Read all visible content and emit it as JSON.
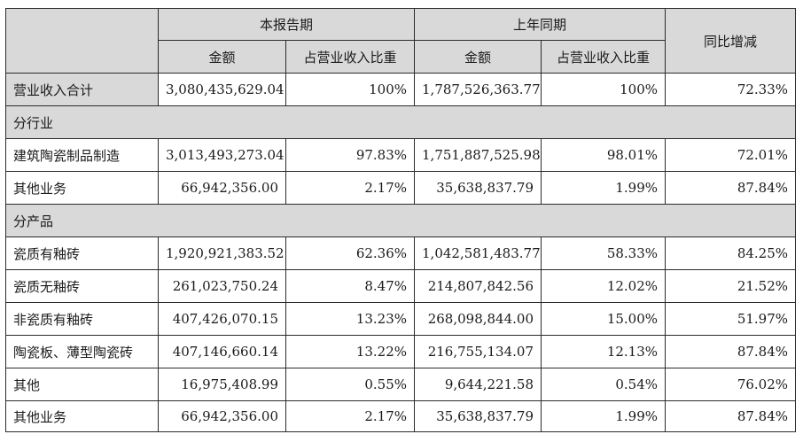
{
  "header": {
    "current_period": "本报告期",
    "prior_period": "上年同期",
    "yoy_change": "同比增减",
    "amount": "金额",
    "share_of_revenue": "占营业收入比重"
  },
  "total": {
    "label": "营业收入合计",
    "current_amount": "3,080,435,629.04",
    "current_share": "100%",
    "prior_amount": "1,787,526,363.77",
    "prior_share": "100%",
    "change": "72.33%"
  },
  "sections": [
    {
      "title": "分行业",
      "rows": [
        {
          "label": "建筑陶瓷制品制造",
          "current_amount": "3,013,493,273.04",
          "current_share": "97.83%",
          "prior_amount": "1,751,887,525.98",
          "prior_share": "98.01%",
          "change": "72.01%"
        },
        {
          "label": "其他业务",
          "current_amount": "66,942,356.00",
          "current_share": "2.17%",
          "prior_amount": "35,638,837.79",
          "prior_share": "1.99%",
          "change": "87.84%"
        }
      ]
    },
    {
      "title": "分产品",
      "rows": [
        {
          "label": "瓷质有釉砖",
          "current_amount": "1,920,921,383.52",
          "current_share": "62.36%",
          "prior_amount": "1,042,581,483.77",
          "prior_share": "58.33%",
          "change": "84.25%"
        },
        {
          "label": "瓷质无釉砖",
          "current_amount": "261,023,750.24",
          "current_share": "8.47%",
          "prior_amount": "214,807,842.56",
          "prior_share": "12.02%",
          "change": "21.52%"
        },
        {
          "label": "非瓷质有釉砖",
          "current_amount": "407,426,070.15",
          "current_share": "13.23%",
          "prior_amount": "268,098,844.00",
          "prior_share": "15.00%",
          "change": "51.97%"
        },
        {
          "label": "陶瓷板、薄型陶瓷砖",
          "current_amount": "407,146,660.14",
          "current_share": "13.22%",
          "prior_amount": "216,755,134.07",
          "prior_share": "12.13%",
          "change": "87.84%"
        },
        {
          "label": "其他",
          "current_amount": "16,975,408.99",
          "current_share": "0.55%",
          "prior_amount": "9,644,221.58",
          "prior_share": "0.54%",
          "change": "76.02%"
        },
        {
          "label": "其他业务",
          "current_amount": "66,942,356.00",
          "current_share": "2.17%",
          "prior_amount": "35,638,837.79",
          "prior_share": "1.99%",
          "change": "87.84%"
        }
      ]
    }
  ]
}
